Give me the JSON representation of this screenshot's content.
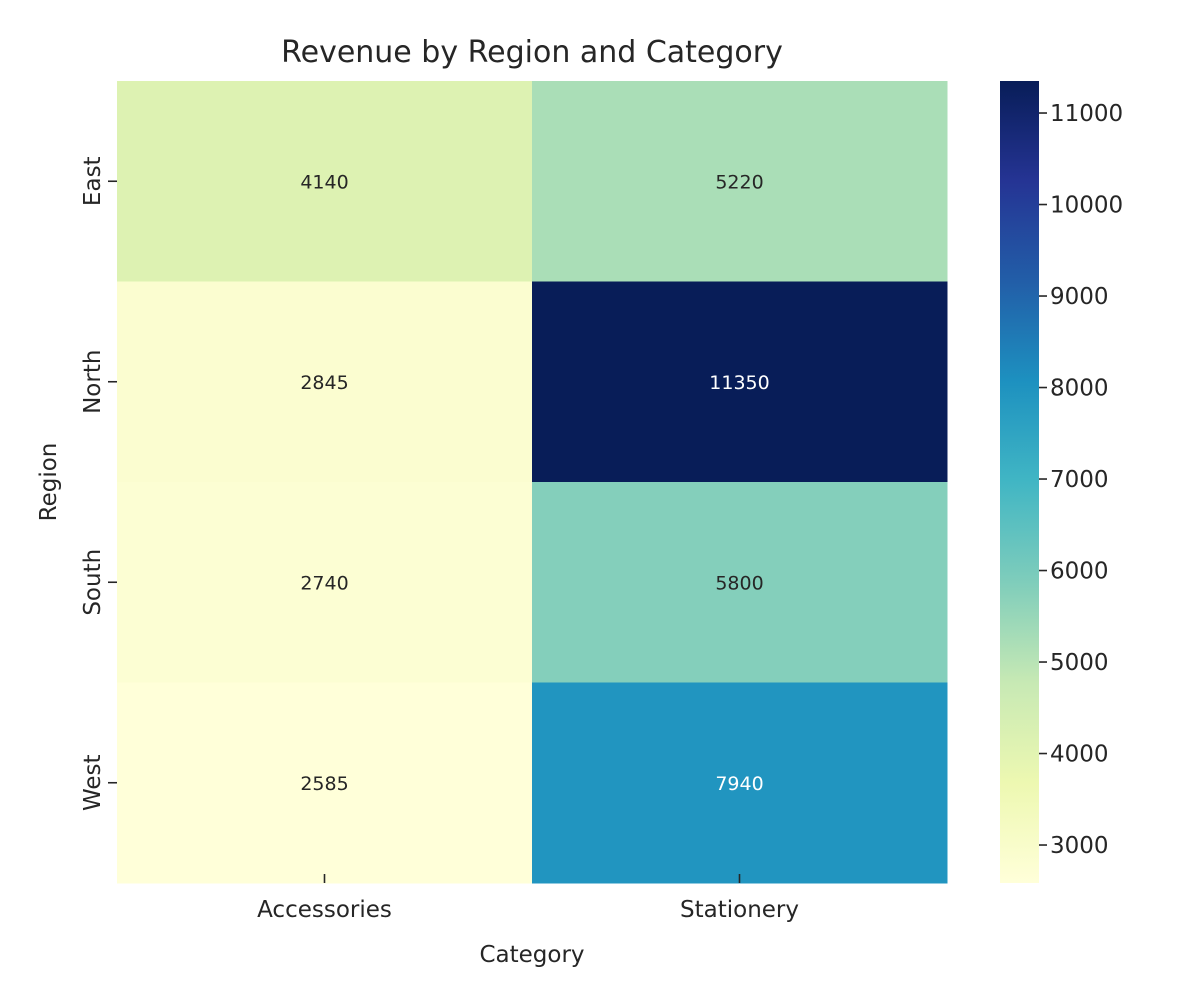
{
  "chart_data": {
    "type": "heatmap",
    "title": "Revenue by Region and Category",
    "xlabel": "Category",
    "ylabel": "Region",
    "x_categories": [
      "Accessories",
      "Stationery"
    ],
    "y_categories": [
      "East",
      "North",
      "South",
      "West"
    ],
    "values": [
      [
        4140,
        5220
      ],
      [
        2845,
        11350
      ],
      [
        2740,
        5800
      ],
      [
        2585,
        7940
      ]
    ],
    "colorbar": {
      "colormap": "YlGnBu",
      "range": [
        2585,
        11350
      ],
      "ticks": [
        3000,
        4000,
        5000,
        6000,
        7000,
        8000,
        9000,
        10000,
        11000
      ]
    },
    "colors": {
      "text_dark": "#262626",
      "text_light": "#ffffff"
    }
  }
}
